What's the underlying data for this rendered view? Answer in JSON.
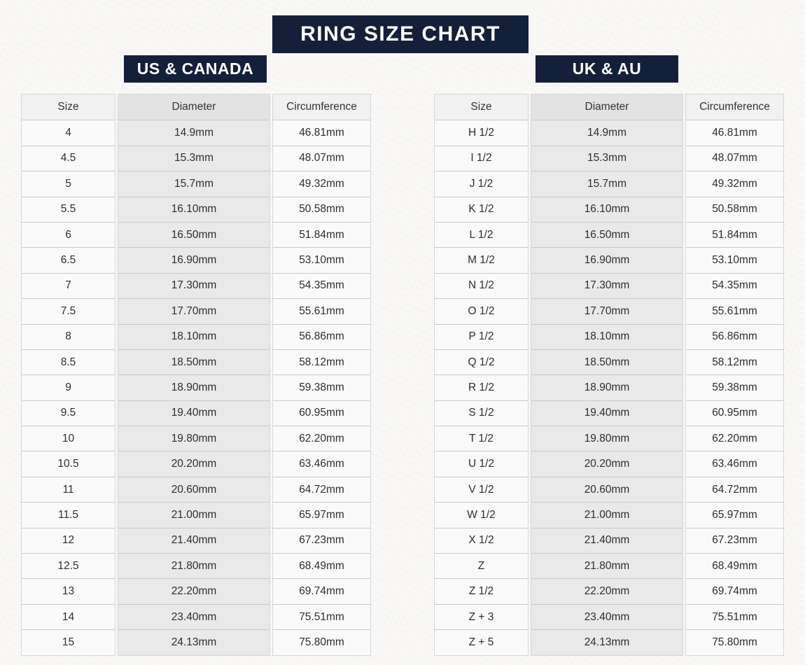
{
  "page": {
    "title": "RING SIZE CHART",
    "accent_navy": "#141f3a",
    "background": "#fbfaf8",
    "cell_gray": "#e9e9e9",
    "cell_light": "#fafafa"
  },
  "chart_data": [
    {
      "type": "table",
      "title": "US & CANADA",
      "columns": [
        "Size",
        "Diameter",
        "Circumference"
      ],
      "rows": [
        [
          "4",
          "14.9mm",
          "46.81mm"
        ],
        [
          "4.5",
          "15.3mm",
          "48.07mm"
        ],
        [
          "5",
          "15.7mm",
          "49.32mm"
        ],
        [
          "5.5",
          "16.10mm",
          "50.58mm"
        ],
        [
          "6",
          "16.50mm",
          "51.84mm"
        ],
        [
          "6.5",
          "16.90mm",
          "53.10mm"
        ],
        [
          "7",
          "17.30mm",
          "54.35mm"
        ],
        [
          "7.5",
          "17.70mm",
          "55.61mm"
        ],
        [
          "8",
          "18.10mm",
          "56.86mm"
        ],
        [
          "8.5",
          "18.50mm",
          "58.12mm"
        ],
        [
          "9",
          "18.90mm",
          "59.38mm"
        ],
        [
          "9.5",
          "19.40mm",
          "60.95mm"
        ],
        [
          "10",
          "19.80mm",
          "62.20mm"
        ],
        [
          "10.5",
          "20.20mm",
          "63.46mm"
        ],
        [
          "11",
          "20.60mm",
          "64.72mm"
        ],
        [
          "11.5",
          "21.00mm",
          "65.97mm"
        ],
        [
          "12",
          "21.40mm",
          "67.23mm"
        ],
        [
          "12.5",
          "21.80mm",
          "68.49mm"
        ],
        [
          "13",
          "22.20mm",
          "69.74mm"
        ],
        [
          "14",
          "23.40mm",
          "75.51mm"
        ],
        [
          "15",
          "24.13mm",
          "75.80mm"
        ]
      ]
    },
    {
      "type": "table",
      "title": "UK & AU",
      "columns": [
        "Size",
        "Diameter",
        "Circumference"
      ],
      "rows": [
        [
          "H 1/2",
          "14.9mm",
          "46.81mm"
        ],
        [
          "I 1/2",
          "15.3mm",
          "48.07mm"
        ],
        [
          "J 1/2",
          "15.7mm",
          "49.32mm"
        ],
        [
          "K 1/2",
          "16.10mm",
          "50.58mm"
        ],
        [
          "L 1/2",
          "16.50mm",
          "51.84mm"
        ],
        [
          "M 1/2",
          "16.90mm",
          "53.10mm"
        ],
        [
          "N 1/2",
          "17.30mm",
          "54.35mm"
        ],
        [
          "O 1/2",
          "17.70mm",
          "55.61mm"
        ],
        [
          "P 1/2",
          "18.10mm",
          "56.86mm"
        ],
        [
          "Q 1/2",
          "18.50mm",
          "58.12mm"
        ],
        [
          "R 1/2",
          "18.90mm",
          "59.38mm"
        ],
        [
          "S 1/2",
          "19.40mm",
          "60.95mm"
        ],
        [
          "T 1/2",
          "19.80mm",
          "62.20mm"
        ],
        [
          "U 1/2",
          "20.20mm",
          "63.46mm"
        ],
        [
          "V 1/2",
          "20.60mm",
          "64.72mm"
        ],
        [
          "W 1/2",
          "21.00mm",
          "65.97mm"
        ],
        [
          "X 1/2",
          "21.40mm",
          "67.23mm"
        ],
        [
          "Z",
          "21.80mm",
          "68.49mm"
        ],
        [
          "Z 1/2",
          "22.20mm",
          "69.74mm"
        ],
        [
          "Z + 3",
          "23.40mm",
          "75.51mm"
        ],
        [
          "Z + 5",
          "24.13mm",
          "75.80mm"
        ]
      ]
    }
  ]
}
